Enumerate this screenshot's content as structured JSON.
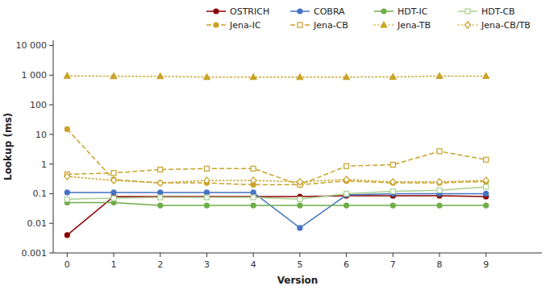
{
  "chart_data": {
    "type": "line",
    "xlabel": "Version",
    "ylabel": "Lookup (ms)",
    "log": "y",
    "grid": false,
    "legend": "upper right",
    "x": [
      0,
      1,
      2,
      3,
      4,
      5,
      6,
      7,
      8,
      9
    ],
    "xlim": [
      -0.3,
      10.2
    ],
    "xticks": [
      0,
      1,
      2,
      3,
      4,
      5,
      6,
      7,
      8,
      9
    ],
    "ylim": [
      0.001,
      15000
    ],
    "yticks": [
      0.001,
      0.01,
      0.1,
      1,
      10,
      100,
      {
        "value": 1000,
        "label": "1 000"
      },
      {
        "value": 10000,
        "label": "10 000"
      }
    ],
    "series": [
      {
        "name": "OSTRICH",
        "color": "#8B0000",
        "line_style": "solid",
        "marker": "circle",
        "values": [
          0.004,
          0.08,
          0.08,
          0.08,
          0.08,
          0.08,
          0.085,
          0.085,
          0.085,
          0.08
        ]
      },
      {
        "name": "COBRA",
        "color": "#4472C4",
        "line_style": "solid",
        "marker": "circle",
        "values": [
          0.11,
          0.11,
          0.11,
          0.11,
          0.11,
          0.007,
          0.09,
          0.1,
          0.1,
          0.1
        ]
      },
      {
        "name": "HDT-IC",
        "color": "#70AD47",
        "line_style": "solid",
        "marker": "circle",
        "values": [
          0.05,
          0.05,
          0.04,
          0.04,
          0.04,
          0.04,
          0.04,
          0.04,
          0.04,
          0.04
        ]
      },
      {
        "name": "HDT-CB",
        "color": "#A9D18E",
        "line_style": "solid",
        "marker": "square-open",
        "values": [
          0.065,
          0.07,
          0.075,
          0.075,
          0.075,
          0.065,
          0.1,
          0.12,
          0.13,
          0.17
        ]
      },
      {
        "name": "Jena-IC",
        "color": "#C9A227",
        "line_style": "dashed",
        "marker": "circle",
        "values": [
          15.0,
          0.3,
          0.23,
          0.23,
          0.2,
          0.2,
          0.27,
          0.23,
          0.23,
          0.26
        ]
      },
      {
        "name": "Jena-CB",
        "color": "#C9A227",
        "line_style": "dashed",
        "marker": "square-open",
        "values": [
          0.45,
          0.5,
          0.65,
          0.7,
          0.7,
          0.2,
          0.85,
          0.95,
          2.7,
          1.4
        ]
      },
      {
        "name": "Jena-TB",
        "color": "#C9A227",
        "line_style": "dotted",
        "marker": "triangle",
        "values": [
          950,
          920,
          910,
          860,
          860,
          860,
          860,
          870,
          930,
          930
        ]
      },
      {
        "name": "Jena-CB/TB",
        "color": "#C9A227",
        "line_style": "dotted",
        "marker": "diamond-open",
        "values": [
          0.38,
          0.28,
          0.23,
          0.28,
          0.28,
          0.25,
          0.3,
          0.25,
          0.25,
          0.28
        ]
      }
    ]
  }
}
